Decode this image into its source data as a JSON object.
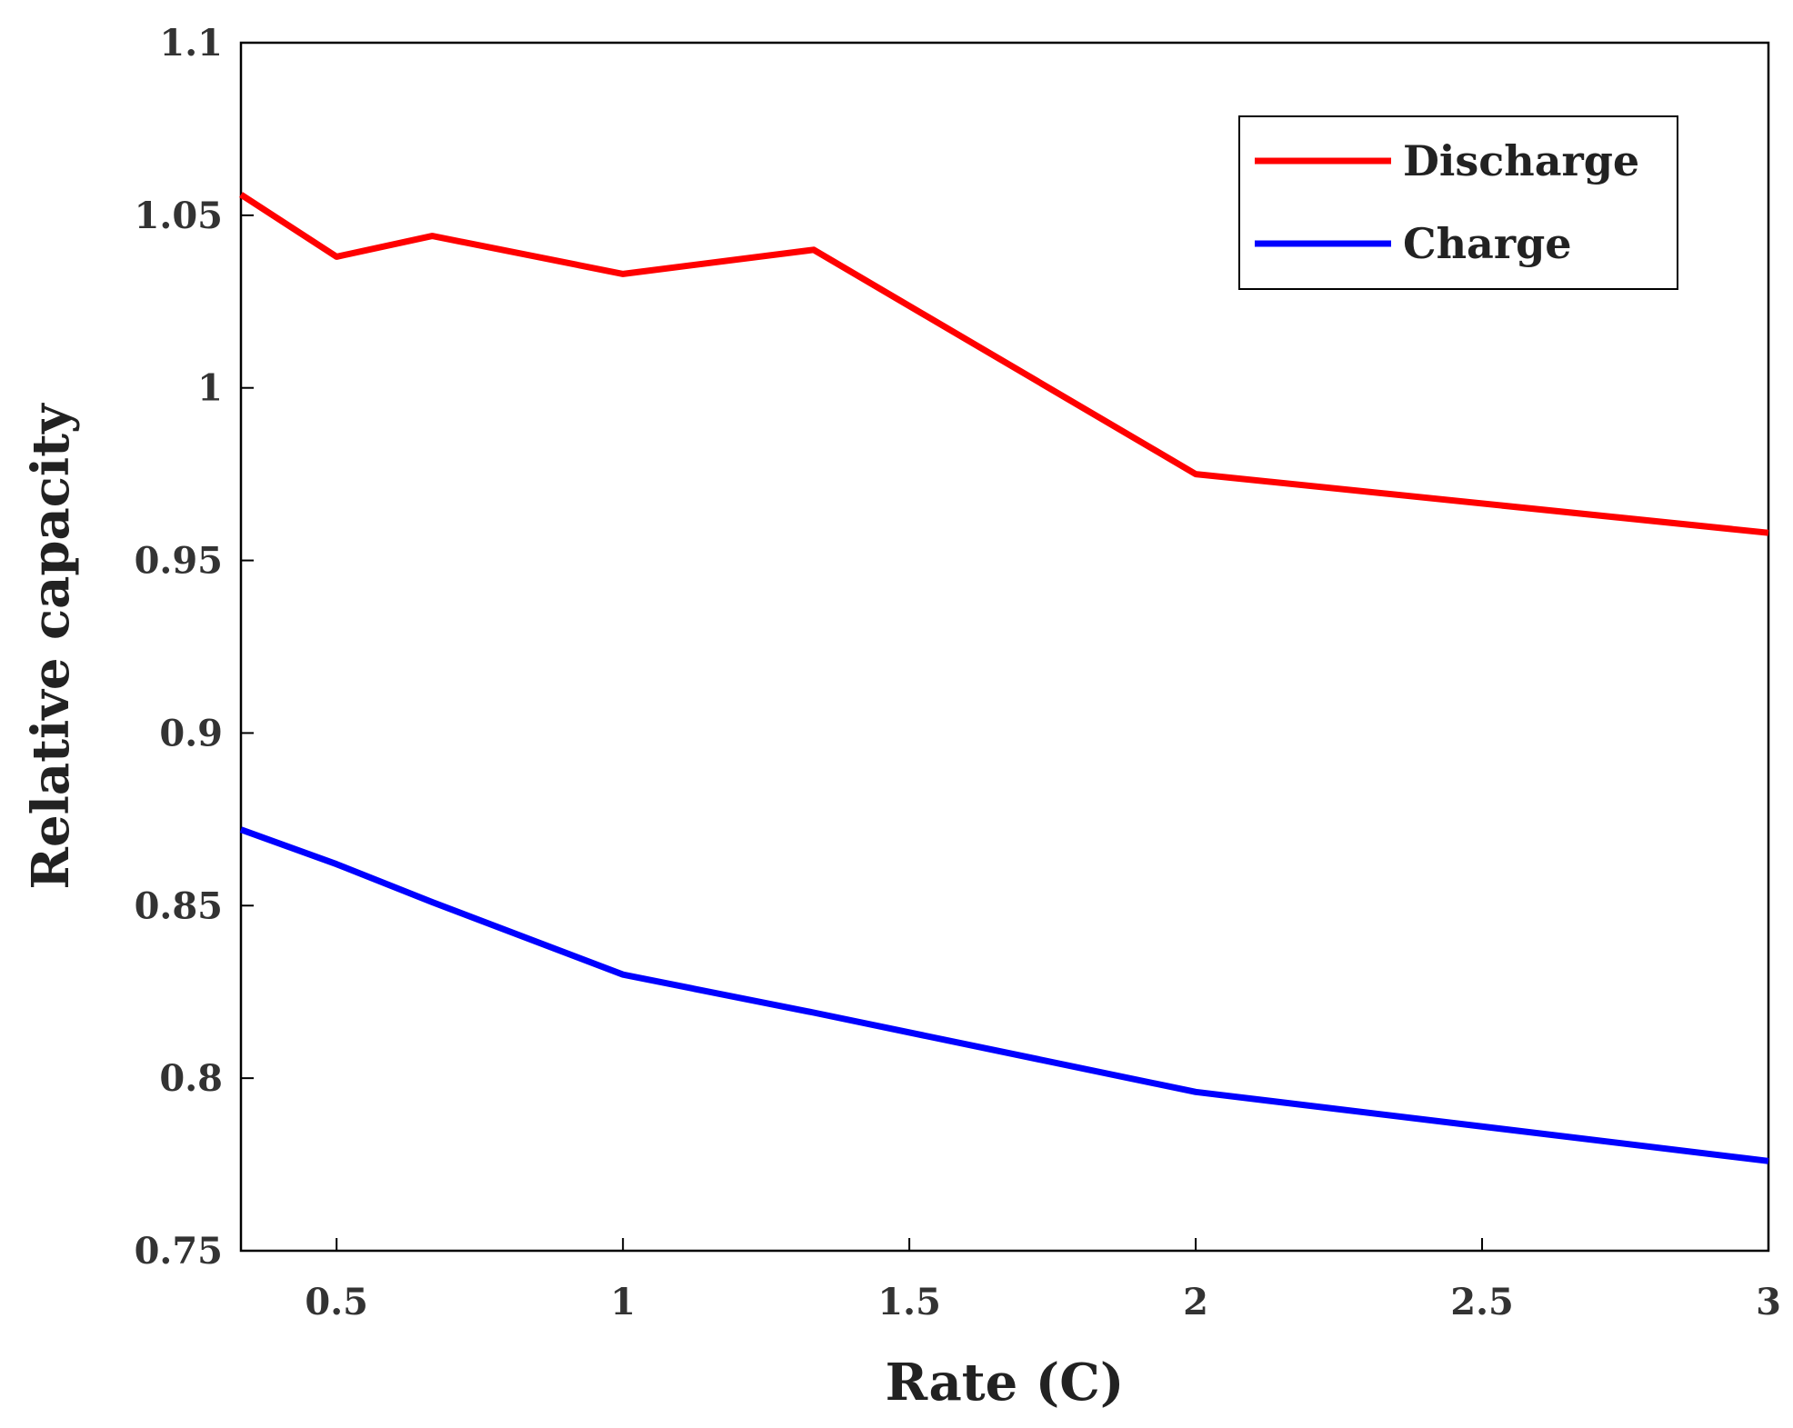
{
  "chart_data": {
    "type": "line",
    "title": "",
    "xlabel": "Rate (C)",
    "ylabel": "Relative capacity",
    "xlim": [
      0.333,
      3
    ],
    "ylim": [
      0.75,
      1.1
    ],
    "xticks": [
      0.5,
      1,
      1.5,
      2,
      2.5,
      3
    ],
    "xtick_labels": [
      "0.5",
      "1",
      "1.5",
      "2",
      "2.5",
      "3"
    ],
    "yticks": [
      0.75,
      0.8,
      0.85,
      0.9,
      0.95,
      1,
      1.05,
      1.1
    ],
    "ytick_labels": [
      "0.75",
      "0.8",
      "0.85",
      "0.9",
      "0.95",
      "1",
      "1.05",
      "1.1"
    ],
    "grid": false,
    "legend_position": "top-right",
    "series": [
      {
        "name": "Discharge",
        "color": "#ff0000",
        "x": [
          0.333,
          0.5,
          0.667,
          1,
          1.333,
          2,
          3
        ],
        "y": [
          1.056,
          1.038,
          1.044,
          1.033,
          1.04,
          0.975,
          0.958
        ]
      },
      {
        "name": "Charge",
        "color": "#0000ff",
        "x": [
          0.333,
          0.5,
          0.667,
          1,
          1.333,
          2,
          3
        ],
        "y": [
          0.872,
          0.862,
          0.851,
          0.83,
          0.819,
          0.796,
          0.776
        ]
      }
    ]
  }
}
